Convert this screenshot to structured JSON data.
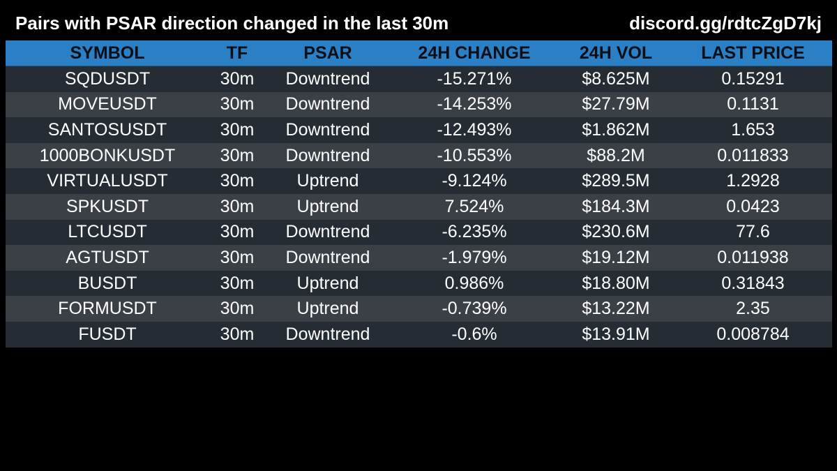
{
  "header": {
    "title": "Pairs with PSAR direction changed in the last 30m",
    "link": "discord.gg/rdtcZgD7kj"
  },
  "colors": {
    "background": "#000000",
    "header_row": "#2b7fc4",
    "row_dark": "#252c33",
    "row_light": "#3b4047",
    "text": "#ffffff"
  },
  "table": {
    "columns": [
      "SYMBOL",
      "TF",
      "PSAR",
      "24H CHANGE",
      "24H VOL",
      "LAST PRICE"
    ],
    "rows": [
      {
        "symbol": "SQDUSDT",
        "tf": "30m",
        "psar": "Downtrend",
        "change": "-15.271%",
        "vol": "$8.625M",
        "price": "0.15291"
      },
      {
        "symbol": "MOVEUSDT",
        "tf": "30m",
        "psar": "Downtrend",
        "change": "-14.253%",
        "vol": "$27.79M",
        "price": "0.1131"
      },
      {
        "symbol": "SANTOSUSDT",
        "tf": "30m",
        "psar": "Downtrend",
        "change": "-12.493%",
        "vol": "$1.862M",
        "price": "1.653"
      },
      {
        "symbol": "1000BONKUSDT",
        "tf": "30m",
        "psar": "Downtrend",
        "change": "-10.553%",
        "vol": "$88.2M",
        "price": "0.011833"
      },
      {
        "symbol": "VIRTUALUSDT",
        "tf": "30m",
        "psar": "Uptrend",
        "change": "-9.124%",
        "vol": "$289.5M",
        "price": "1.2928"
      },
      {
        "symbol": "SPKUSDT",
        "tf": "30m",
        "psar": "Uptrend",
        "change": "7.524%",
        "vol": "$184.3M",
        "price": "0.0423"
      },
      {
        "symbol": "LTCUSDT",
        "tf": "30m",
        "psar": "Downtrend",
        "change": "-6.235%",
        "vol": "$230.6M",
        "price": "77.6"
      },
      {
        "symbol": "AGTUSDT",
        "tf": "30m",
        "psar": "Downtrend",
        "change": "-1.979%",
        "vol": "$19.12M",
        "price": "0.011938"
      },
      {
        "symbol": "BUSDT",
        "tf": "30m",
        "psar": "Uptrend",
        "change": "0.986%",
        "vol": "$18.80M",
        "price": "0.31843"
      },
      {
        "symbol": "FORMUSDT",
        "tf": "30m",
        "psar": "Uptrend",
        "change": "-0.739%",
        "vol": "$13.22M",
        "price": "2.35"
      },
      {
        "symbol": "FUSDT",
        "tf": "30m",
        "psar": "Downtrend",
        "change": "-0.6%",
        "vol": "$13.91M",
        "price": "0.008784"
      }
    ]
  }
}
